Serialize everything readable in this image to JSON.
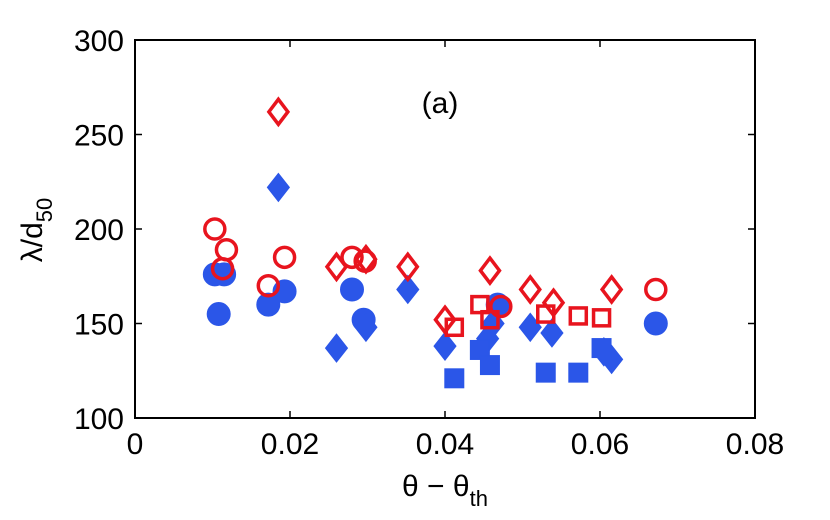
{
  "chart_data": {
    "type": "scatter",
    "panel_label": "(a)",
    "xlabel": {
      "main": "θ − θ",
      "sub": "th"
    },
    "ylabel": {
      "main": "λ/d",
      "sub": "50"
    },
    "xlim": [
      0,
      0.08
    ],
    "ylim": [
      100,
      300
    ],
    "xticks": [
      0,
      0.02,
      0.04,
      0.06,
      0.08
    ],
    "xtick_labels": [
      "0",
      "0.02",
      "0.04",
      "0.06",
      "0.08"
    ],
    "yticks": [
      100,
      150,
      200,
      250,
      300
    ],
    "ytick_labels": [
      "100",
      "150",
      "200",
      "250",
      "300"
    ],
    "grid": false,
    "colors": {
      "blue": "#2b56e8",
      "red": "#e8141e"
    },
    "series": [
      {
        "name": "blue-circles",
        "marker": "circle",
        "filled": true,
        "color": "blue",
        "points": [
          [
            0.0103,
            176
          ],
          [
            0.0115,
            176
          ],
          [
            0.0108,
            155
          ],
          [
            0.0172,
            160
          ],
          [
            0.0193,
            167
          ],
          [
            0.028,
            168
          ],
          [
            0.0295,
            152
          ],
          [
            0.0468,
            160
          ],
          [
            0.0672,
            150
          ]
        ]
      },
      {
        "name": "blue-diamonds",
        "marker": "diamond",
        "filled": true,
        "color": "blue",
        "points": [
          [
            0.0185,
            222
          ],
          [
            0.026,
            137
          ],
          [
            0.0298,
            148
          ],
          [
            0.0352,
            168
          ],
          [
            0.04,
            138
          ],
          [
            0.0455,
            142
          ],
          [
            0.0462,
            150
          ],
          [
            0.051,
            148
          ],
          [
            0.0538,
            145
          ],
          [
            0.0605,
            135
          ],
          [
            0.0615,
            131
          ]
        ]
      },
      {
        "name": "blue-squares",
        "marker": "square",
        "filled": true,
        "color": "blue",
        "points": [
          [
            0.0412,
            121
          ],
          [
            0.0445,
            136
          ],
          [
            0.0458,
            128
          ],
          [
            0.053,
            124
          ],
          [
            0.0572,
            124
          ],
          [
            0.0602,
            137
          ]
        ]
      },
      {
        "name": "red-circles",
        "marker": "circle",
        "filled": false,
        "color": "red",
        "points": [
          [
            0.0103,
            200
          ],
          [
            0.0118,
            189
          ],
          [
            0.0113,
            179
          ],
          [
            0.0172,
            170
          ],
          [
            0.0193,
            185
          ],
          [
            0.028,
            185
          ],
          [
            0.0297,
            183
          ],
          [
            0.0472,
            159
          ],
          [
            0.0672,
            168
          ]
        ]
      },
      {
        "name": "red-diamonds",
        "marker": "diamond",
        "filled": false,
        "color": "red",
        "points": [
          [
            0.0185,
            262
          ],
          [
            0.026,
            180
          ],
          [
            0.0298,
            184
          ],
          [
            0.0352,
            180
          ],
          [
            0.04,
            152
          ],
          [
            0.0458,
            178
          ],
          [
            0.051,
            168
          ],
          [
            0.054,
            161
          ],
          [
            0.0615,
            168
          ]
        ]
      },
      {
        "name": "red-squares",
        "marker": "square",
        "filled": false,
        "color": "red",
        "points": [
          [
            0.0412,
            148
          ],
          [
            0.0445,
            160
          ],
          [
            0.0458,
            152
          ],
          [
            0.053,
            155
          ],
          [
            0.0572,
            154
          ],
          [
            0.0602,
            153
          ]
        ]
      }
    ]
  }
}
